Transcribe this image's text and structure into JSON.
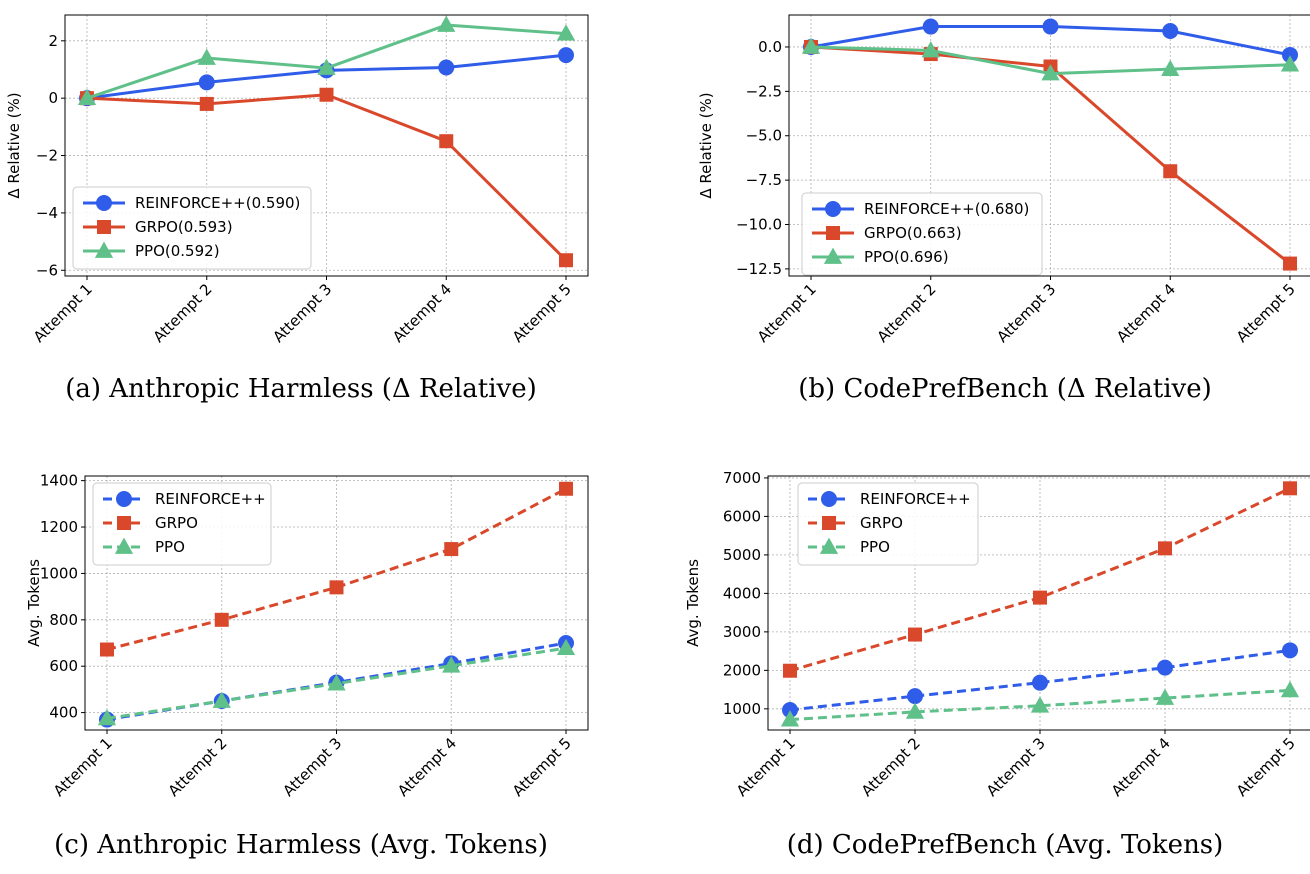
{
  "figure": {
    "chart_data": [
      {
        "id": "a",
        "type": "line",
        "caption": "(a) Anthropic Harmless (Δ Relative)",
        "ylabel": "Δ Relative (%)",
        "categories": [
          "Attempt 1",
          "Attempt 2",
          "Attempt 3",
          "Attempt 4",
          "Attempt 5"
        ],
        "ylim": [
          -6.2,
          2.9
        ],
        "yticks": [
          2,
          0,
          -2,
          -4,
          -6
        ],
        "yticklabels": [
          "2",
          "0",
          "−2",
          "−4",
          "−6"
        ],
        "line_style": "solid",
        "legend_position": "lower-left",
        "grid": true,
        "series": [
          {
            "name": "REINFORCE++(0.590)",
            "color": "#2f5ce8",
            "marker": "circle",
            "values": [
              0.0,
              0.55,
              0.97,
              1.07,
              1.5
            ]
          },
          {
            "name": "GRPO(0.593)",
            "color": "#d9482b",
            "marker": "square",
            "values": [
              0.0,
              -0.2,
              0.12,
              -1.5,
              -5.65
            ]
          },
          {
            "name": "PPO(0.592)",
            "color": "#5fc08a",
            "marker": "triangle",
            "values": [
              0.0,
              1.4,
              1.05,
              2.55,
              2.25
            ]
          }
        ]
      },
      {
        "id": "b",
        "type": "line",
        "caption": "(b) CodePrefBench (Δ Relative)",
        "ylabel": "Δ Relative (%)",
        "categories": [
          "Attempt 1",
          "Attempt 2",
          "Attempt 3",
          "Attempt 4",
          "Attempt 5"
        ],
        "ylim": [
          -12.9,
          1.8
        ],
        "yticks": [
          0,
          -2.5,
          -5,
          -7.5,
          -10,
          -12.5
        ],
        "yticklabels": [
          "0.0",
          "−2.5",
          "−5.0",
          "−7.5",
          "−10.0",
          "−12.5"
        ],
        "line_style": "solid",
        "legend_position": "lower-left",
        "grid": true,
        "series": [
          {
            "name": "REINFORCE++(0.680)",
            "color": "#2f5ce8",
            "marker": "circle",
            "values": [
              0.0,
              1.15,
              1.15,
              0.9,
              -0.45
            ]
          },
          {
            "name": "GRPO(0.663)",
            "color": "#d9482b",
            "marker": "square",
            "values": [
              0.0,
              -0.4,
              -1.1,
              -7.0,
              -12.2
            ]
          },
          {
            "name": "PPO(0.696)",
            "color": "#5fc08a",
            "marker": "triangle",
            "values": [
              0.0,
              -0.2,
              -1.5,
              -1.25,
              -1.0
            ]
          }
        ]
      },
      {
        "id": "c",
        "type": "line",
        "caption": "(c) Anthropic Harmless (Avg. Tokens)",
        "ylabel": "Avg. Tokens",
        "categories": [
          "Attempt 1",
          "Attempt 2",
          "Attempt 3",
          "Attempt 4",
          "Attempt 5"
        ],
        "ylim": [
          325,
          1420
        ],
        "yticks": [
          400,
          600,
          800,
          1000,
          1200,
          1400
        ],
        "yticklabels": [
          "400",
          "600",
          "800",
          "1000",
          "1200",
          "1400"
        ],
        "line_style": "dashed",
        "legend_position": "upper-left",
        "grid": true,
        "series": [
          {
            "name": "REINFORCE++",
            "color": "#2f5ce8",
            "marker": "circle",
            "values": [
              370,
              450,
              530,
              612,
              700
            ]
          },
          {
            "name": "GRPO",
            "color": "#d9482b",
            "marker": "square",
            "values": [
              672,
              800,
              940,
              1105,
              1365
            ]
          },
          {
            "name": "PPO",
            "color": "#5fc08a",
            "marker": "triangle",
            "values": [
              375,
              450,
              525,
              602,
              678
            ]
          }
        ]
      },
      {
        "id": "d",
        "type": "line",
        "caption": "(d) CodePrefBench (Avg. Tokens)",
        "ylabel": "Avg. Tokens",
        "categories": [
          "Attempt 1",
          "Attempt 2",
          "Attempt 3",
          "Attempt 4",
          "Attempt 5"
        ],
        "ylim": [
          450,
          7050
        ],
        "yticks": [
          1000,
          2000,
          3000,
          4000,
          5000,
          6000,
          7000
        ],
        "yticklabels": [
          "1000",
          "2000",
          "3000",
          "4000",
          "5000",
          "6000",
          "7000"
        ],
        "line_style": "dashed",
        "legend_position": "upper-left",
        "grid": true,
        "series": [
          {
            "name": "REINFORCE++",
            "color": "#2f5ce8",
            "marker": "circle",
            "values": [
              970,
              1330,
              1680,
              2070,
              2520
            ]
          },
          {
            "name": "GRPO",
            "color": "#d9482b",
            "marker": "square",
            "values": [
              1990,
              2930,
              3890,
              5170,
              6730
            ]
          },
          {
            "name": "PPO",
            "color": "#5fc08a",
            "marker": "triangle",
            "values": [
              720,
              920,
              1080,
              1280,
              1480
            ]
          }
        ]
      }
    ]
  }
}
